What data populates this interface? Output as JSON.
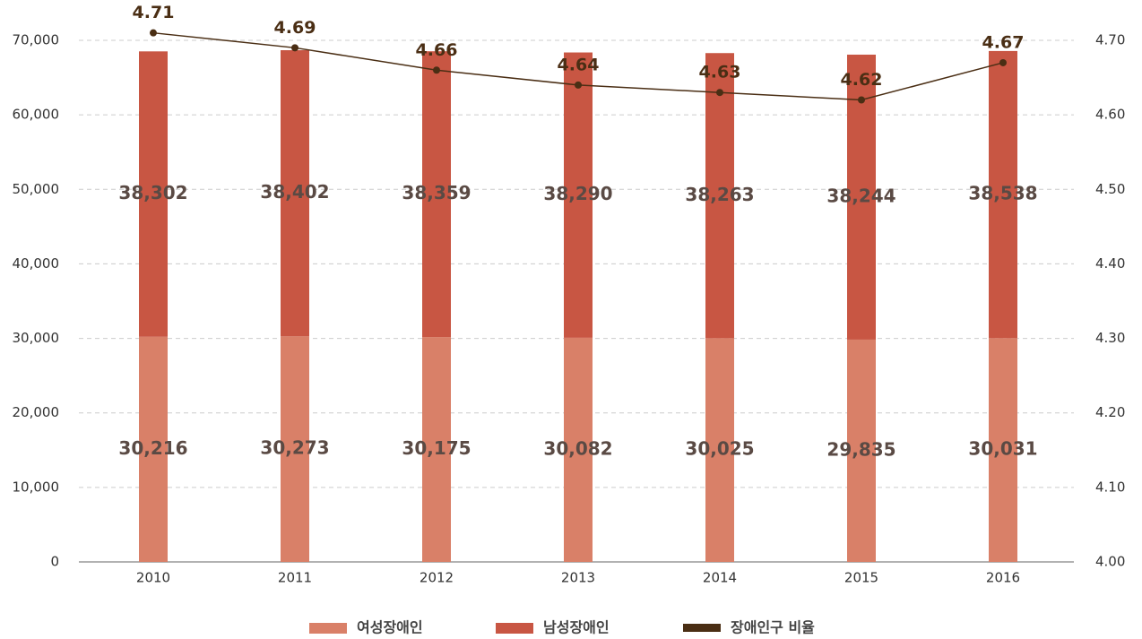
{
  "chart_data": {
    "type": "bar",
    "categories": [
      "2010",
      "2011",
      "2012",
      "2013",
      "2014",
      "2015",
      "2016"
    ],
    "stacked": true,
    "series": [
      {
        "name": "여성장애인",
        "color": "#d98068",
        "values": [
          30216,
          30273,
          30175,
          30082,
          30025,
          29835,
          30031
        ],
        "value_labels": [
          "30,216",
          "30,273",
          "30,175",
          "30,082",
          "30,025",
          "29,835",
          "30,031"
        ]
      },
      {
        "name": "남성장애인",
        "color": "#c85643",
        "values": [
          38302,
          38402,
          38359,
          38290,
          38263,
          38244,
          38538
        ],
        "value_labels": [
          "38,302",
          "38,402",
          "38,359",
          "38,290",
          "38,263",
          "38,244",
          "38,538"
        ]
      },
      {
        "name": "장애인구 비율",
        "color": "#4a2e14",
        "type": "line",
        "axis": "y2",
        "values": [
          4.71,
          4.69,
          4.66,
          4.64,
          4.63,
          4.62,
          4.67
        ]
      }
    ],
    "ylim": [
      0,
      70000
    ],
    "yticks": [
      0,
      {
        "value": 10000,
        "label": "10,000"
      },
      {
        "value": 20000,
        "label": "20,000"
      },
      {
        "value": 30000,
        "label": "30,000"
      },
      {
        "value": 40000,
        "label": "40,000"
      },
      {
        "value": 50000,
        "label": "50,000"
      },
      {
        "value": 60000,
        "label": "60,000"
      },
      {
        "value": 70000,
        "label": "70,000"
      }
    ],
    "y2lim": [
      4.0,
      4.7
    ],
    "y2ticks": [
      {
        "value": 4.0,
        "label": "4.00"
      },
      {
        "value": 4.1,
        "label": "4.10"
      },
      {
        "value": 4.2,
        "label": "4.20"
      },
      {
        "value": 4.3,
        "label": "4.30"
      },
      {
        "value": 4.4,
        "label": "4.40"
      },
      {
        "value": 4.5,
        "label": "4.50"
      },
      {
        "value": 4.6,
        "label": "4.60"
      },
      {
        "value": 4.7,
        "label": "4.70"
      }
    ],
    "grid": true,
    "legend": "bottom"
  }
}
